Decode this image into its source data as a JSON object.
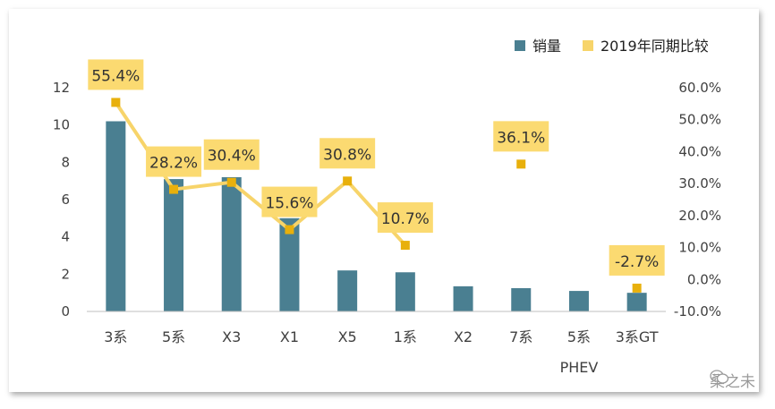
{
  "chart_data": {
    "type": "bar",
    "categories": [
      "3系",
      "5系",
      "X3",
      "X1",
      "X5",
      "1系",
      "X2",
      "7系",
      "5系\nPHEV",
      "3系GT"
    ],
    "series": [
      {
        "name": "销量",
        "type": "bar",
        "axis": "left",
        "color": "#4a7f91",
        "values": [
          10.2,
          7.1,
          7.2,
          5.0,
          2.2,
          2.1,
          1.35,
          1.25,
          1.1,
          1.0
        ]
      },
      {
        "name": "2019年同期比较",
        "type": "line",
        "axis": "right",
        "color": "#f7d46a",
        "marker_color": "#e8b00c",
        "values": [
          55.4,
          28.2,
          30.4,
          15.6,
          30.8,
          10.7,
          null,
          36.1,
          null,
          -2.7
        ],
        "data_labels": [
          "55.4%",
          "28.2%",
          "30.4%",
          "15.6%",
          "30.8%",
          "10.7%",
          "",
          "36.1%",
          "",
          "-2.7%"
        ]
      }
    ],
    "y_left": {
      "range": [
        0,
        12
      ],
      "ticks": [
        "0",
        "2",
        "4",
        "6",
        "8",
        "10",
        "12"
      ]
    },
    "y_right": {
      "range": [
        -10,
        60
      ],
      "ticks": [
        "-10.0%",
        "0.0%",
        "10.0%",
        "20.0%",
        "30.0%",
        "40.0%",
        "50.0%",
        "60.0%"
      ]
    },
    "legend": {
      "position": "top-right",
      "items": [
        "销量",
        "2019年同期比较"
      ]
    },
    "grid": false
  },
  "watermark": {
    "text": "桑之未"
  }
}
